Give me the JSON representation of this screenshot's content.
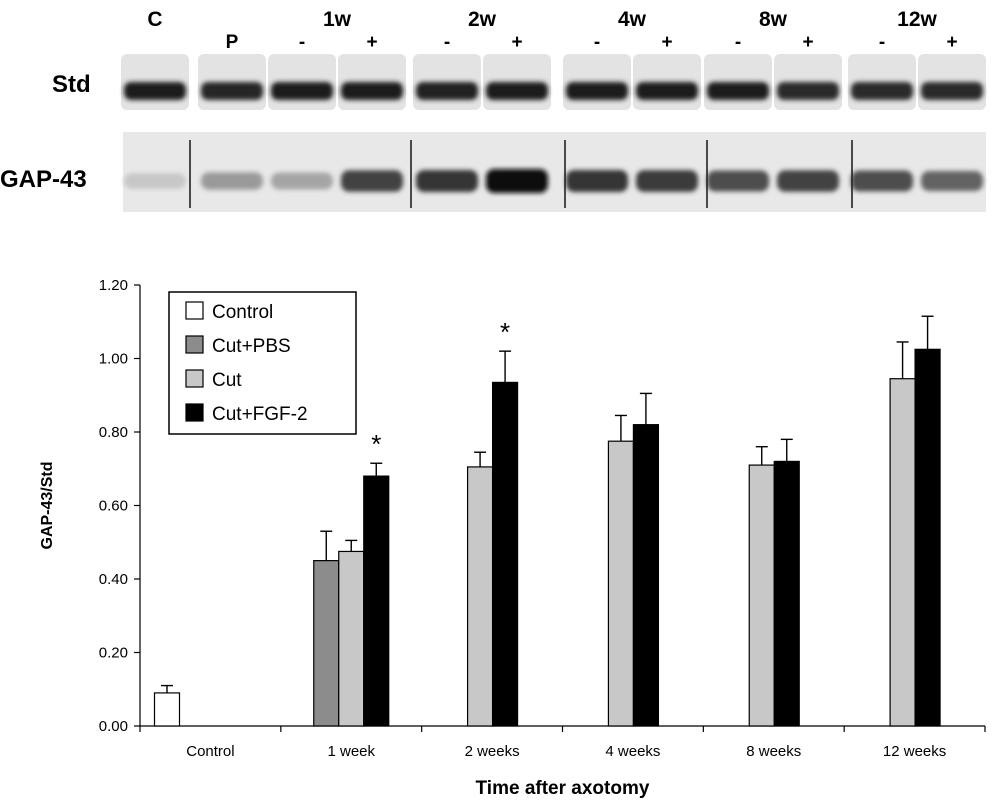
{
  "blot": {
    "header_groups": [
      "C",
      "1w",
      "2w",
      "4w",
      "8w",
      "12w"
    ],
    "lane_marks": [
      "",
      "P",
      "-",
      "+",
      "-",
      "+",
      "-",
      "+",
      "-",
      "+",
      "-",
      "+"
    ],
    "row_labels": [
      "Std",
      "GAP-43"
    ],
    "std_band_intensity": [
      0.95,
      0.92,
      0.95,
      0.95,
      0.93,
      0.95,
      0.95,
      0.95,
      0.95,
      0.9,
      0.9,
      0.9
    ],
    "gap43_band_intensity": [
      0.15,
      0.35,
      0.3,
      0.75,
      0.8,
      1.0,
      0.8,
      0.78,
      0.7,
      0.75,
      0.7,
      0.6
    ]
  },
  "chart_data": {
    "type": "bar",
    "categories": [
      "Control",
      "1 week",
      "2 weeks",
      "4 weeks",
      "8 weeks",
      "12 weeks"
    ],
    "series": [
      {
        "name": "Control",
        "color": "#ffffff",
        "values": [
          0.09,
          null,
          null,
          null,
          null,
          null
        ],
        "errors": [
          0.02,
          null,
          null,
          null,
          null,
          null
        ]
      },
      {
        "name": "Cut+PBS",
        "color": "#8c8c8c",
        "values": [
          null,
          0.45,
          null,
          null,
          null,
          null
        ],
        "errors": [
          null,
          0.08,
          null,
          null,
          null,
          null
        ]
      },
      {
        "name": "Cut",
        "color": "#c8c8c8",
        "values": [
          null,
          0.475,
          0.705,
          0.775,
          0.71,
          0.945
        ],
        "errors": [
          null,
          0.03,
          0.04,
          0.07,
          0.05,
          0.1
        ]
      },
      {
        "name": "Cut+FGF-2",
        "color": "#000000",
        "values": [
          null,
          0.68,
          0.935,
          0.82,
          0.72,
          1.025
        ],
        "errors": [
          null,
          0.035,
          0.085,
          0.085,
          0.06,
          0.09
        ]
      }
    ],
    "significance": [
      {
        "category": "1 week",
        "series": "Cut+FGF-2",
        "text": "*"
      },
      {
        "category": "2 weeks",
        "series": "Cut+FGF-2",
        "text": "*"
      }
    ],
    "ylabel": "GAP-43/Std",
    "xlabel": "Time after axotomy",
    "ylim": [
      0,
      1.2
    ],
    "yticks": [
      "0.00",
      "0.20",
      "0.40",
      "0.60",
      "0.80",
      "1.00",
      "1.20"
    ],
    "grid": false,
    "legend_position": "top-left"
  }
}
